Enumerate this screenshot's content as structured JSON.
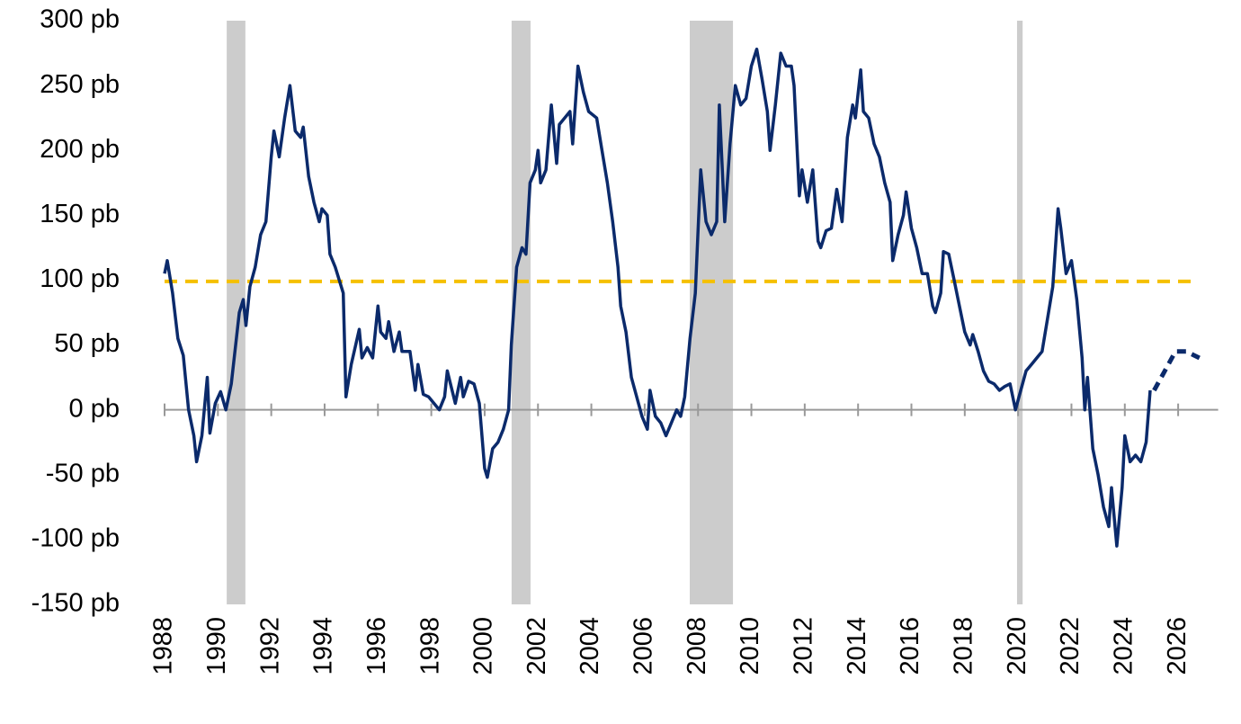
{
  "chart_data": {
    "type": "line",
    "xlim": [
      1988,
      2027.5
    ],
    "xticks": [
      1988,
      1990,
      1992,
      1994,
      1996,
      1998,
      2000,
      2002,
      2004,
      2006,
      2008,
      2010,
      2012,
      2014,
      2016,
      2018,
      2020,
      2022,
      2024,
      2026
    ],
    "ylim": [
      -150,
      300
    ],
    "yticks": [
      {
        "value": -150,
        "label": "-150 pb"
      },
      {
        "value": -100,
        "label": "-100 pb"
      },
      {
        "value": -50,
        "label": "-50 pb"
      },
      {
        "value": 0,
        "label": "0 pb"
      },
      {
        "value": 50,
        "label": "50 pb"
      },
      {
        "value": 100,
        "label": "100 pb"
      },
      {
        "value": 150,
        "label": "150 pb"
      },
      {
        "value": 200,
        "label": "200 pb"
      },
      {
        "value": 250,
        "label": "250 pb"
      },
      {
        "value": 300,
        "label": "300 pb"
      }
    ],
    "shaded_ranges": [
      [
        1990.33,
        1991.03
      ],
      [
        2001.01,
        2001.72
      ],
      [
        2007.69,
        2009.31
      ],
      [
        2019.96,
        2020.17
      ]
    ],
    "shade_color": "#cccccc",
    "reference_line": {
      "value": 99,
      "color": "#f5c000",
      "dashed": true
    },
    "series": [
      {
        "color": "#0b2a6b",
        "dashed": false,
        "x": [
          1988.0,
          1988.1,
          1988.3,
          1988.5,
          1988.7,
          1988.9,
          1989.1,
          1989.2,
          1989.4,
          1989.6,
          1989.7,
          1989.9,
          1990.1,
          1990.3,
          1990.5,
          1990.8,
          1990.95,
          1991.05,
          1991.2,
          1991.4,
          1991.6,
          1991.8,
          1992.0,
          1992.1,
          1992.3,
          1992.5,
          1992.7,
          1992.9,
          1993.1,
          1993.2,
          1993.4,
          1993.6,
          1993.8,
          1993.9,
          1994.1,
          1994.2,
          1994.4,
          1994.7,
          1994.8,
          1995.0,
          1995.3,
          1995.4,
          1995.6,
          1995.8,
          1996.0,
          1996.1,
          1996.3,
          1996.4,
          1996.6,
          1996.8,
          1996.9,
          1997.2,
          1997.4,
          1997.5,
          1997.7,
          1997.9,
          1998.1,
          1998.3,
          1998.5,
          1998.6,
          1998.9,
          1999.1,
          1999.2,
          1999.4,
          1999.6,
          1999.8,
          2000.0,
          2000.1,
          2000.3,
          2000.5,
          2000.7,
          2000.9,
          2001.0,
          2001.2,
          2001.4,
          2001.55,
          2001.7,
          2001.9,
          2002.0,
          2002.1,
          2002.3,
          2002.5,
          2002.7,
          2002.8,
          2003.0,
          2003.2,
          2003.3,
          2003.5,
          2003.7,
          2003.9,
          2004.2,
          2004.4,
          2004.6,
          2004.8,
          2005.0,
          2005.1,
          2005.3,
          2005.5,
          2005.7,
          2005.9,
          2006.1,
          2006.2,
          2006.4,
          2006.6,
          2006.8,
          2007.0,
          2007.2,
          2007.35,
          2007.5,
          2007.7,
          2007.9,
          2008.1,
          2008.3,
          2008.5,
          2008.7,
          2008.8,
          2009.0,
          2009.2,
          2009.4,
          2009.6,
          2009.8,
          2010.0,
          2010.2,
          2010.4,
          2010.6,
          2010.7,
          2010.9,
          2011.1,
          2011.3,
          2011.5,
          2011.6,
          2011.8,
          2011.9,
          2012.1,
          2012.3,
          2012.5,
          2012.6,
          2012.8,
          2013.0,
          2013.2,
          2013.4,
          2013.6,
          2013.8,
          2013.9,
          2014.1,
          2014.2,
          2014.4,
          2014.6,
          2014.8,
          2015.0,
          2015.2,
          2015.3,
          2015.5,
          2015.7,
          2015.8,
          2016.0,
          2016.2,
          2016.4,
          2016.6,
          2016.8,
          2016.9,
          2017.1,
          2017.2,
          2017.4,
          2017.6,
          2017.8,
          2018.0,
          2018.2,
          2018.3,
          2018.5,
          2018.7,
          2018.9,
          2019.1,
          2019.3,
          2019.5,
          2019.7,
          2019.9,
          2020.1,
          2020.3,
          2020.5,
          2020.7,
          2020.9,
          2021.1,
          2021.3,
          2021.5,
          2021.6,
          2021.8,
          2022.0,
          2022.2,
          2022.4,
          2022.5,
          2022.6,
          2022.8,
          2023.0,
          2023.2,
          2023.4,
          2023.5,
          2023.7,
          2023.9,
          2024.0,
          2024.2,
          2024.4,
          2024.6,
          2024.8,
          2024.95
        ],
        "values": [
          105,
          115,
          90,
          55,
          42,
          0,
          -20,
          -40,
          -20,
          25,
          -18,
          5,
          14,
          0,
          20,
          75,
          85,
          65,
          95,
          110,
          135,
          145,
          195,
          215,
          195,
          225,
          250,
          215,
          210,
          218,
          180,
          160,
          145,
          155,
          150,
          120,
          110,
          90,
          10,
          35,
          62,
          40,
          48,
          40,
          80,
          60,
          55,
          68,
          45,
          60,
          45,
          45,
          15,
          35,
          12,
          10,
          5,
          0,
          10,
          30,
          5,
          25,
          10,
          22,
          20,
          5,
          -45,
          -52,
          -30,
          -25,
          -15,
          0,
          50,
          110,
          125,
          120,
          175,
          185,
          200,
          175,
          185,
          235,
          190,
          220,
          225,
          230,
          205,
          265,
          245,
          230,
          225,
          200,
          175,
          145,
          110,
          80,
          60,
          25,
          10,
          -5,
          -15,
          15,
          -5,
          -10,
          -20,
          -10,
          0,
          -5,
          10,
          55,
          90,
          185,
          145,
          135,
          145,
          235,
          145,
          205,
          250,
          235,
          240,
          265,
          278,
          255,
          230,
          200,
          235,
          275,
          265,
          265,
          250,
          165,
          185,
          160,
          185,
          130,
          125,
          138,
          140,
          170,
          145,
          210,
          235,
          225,
          262,
          230,
          225,
          205,
          195,
          175,
          160,
          115,
          135,
          150,
          168,
          140,
          125,
          105,
          105,
          80,
          75,
          90,
          122,
          120,
          100,
          80,
          60,
          50,
          58,
          45,
          30,
          22,
          20,
          15,
          18,
          20,
          0,
          15,
          30,
          35,
          40,
          45,
          70,
          95,
          155,
          140,
          105,
          115,
          85,
          40,
          0,
          25,
          -30,
          -50,
          -75,
          -90,
          -60,
          -105,
          -60,
          -20,
          -40,
          -35,
          -40,
          -25,
          15
        ]
      },
      {
        "color": "#0b2a6b",
        "dashed": true,
        "x": [
          2025.1,
          2025.5,
          2025.9,
          2026.3,
          2026.6,
          2026.8
        ],
        "values": [
          15,
          30,
          45,
          45,
          42,
          40
        ]
      }
    ]
  }
}
